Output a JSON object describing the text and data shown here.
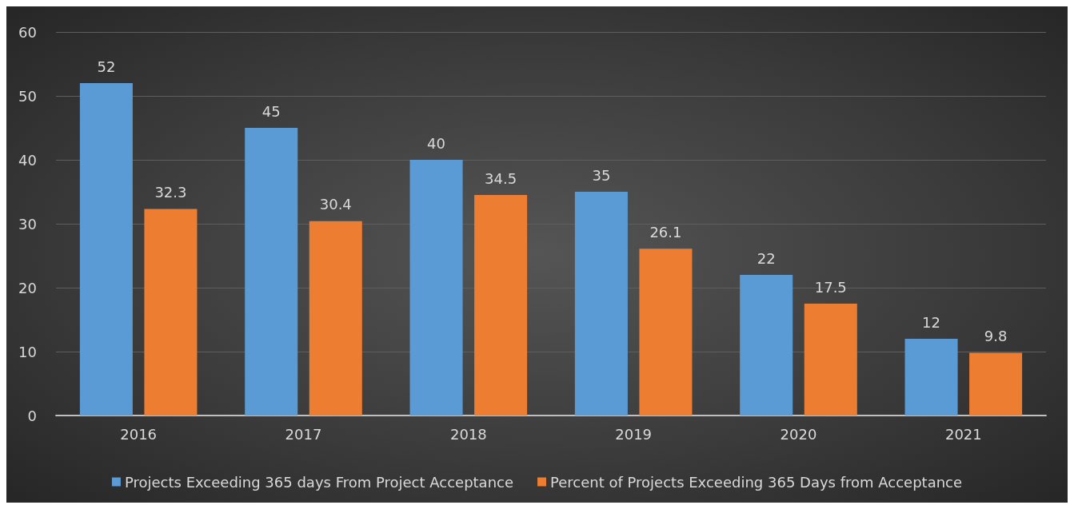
{
  "chart_data": {
    "type": "bar",
    "categories": [
      "2016",
      "2017",
      "2018",
      "2019",
      "2020",
      "2021"
    ],
    "series": [
      {
        "name": "Projects Exceeding 365 days From Project Acceptance",
        "color": "#5b9bd5",
        "values": [
          52,
          45,
          40,
          35,
          22,
          12
        ]
      },
      {
        "name": "Percent of Projects Exceeding 365 Days from Acceptance",
        "color": "#ed7d31",
        "values": [
          32.3,
          30.4,
          34.5,
          26.1,
          17.5,
          9.8
        ]
      }
    ],
    "ylim": [
      0,
      60
    ],
    "yticks": [
      0,
      10,
      20,
      30,
      40,
      50,
      60
    ],
    "grid": "y",
    "legend": "bottom",
    "data_labels": true
  }
}
